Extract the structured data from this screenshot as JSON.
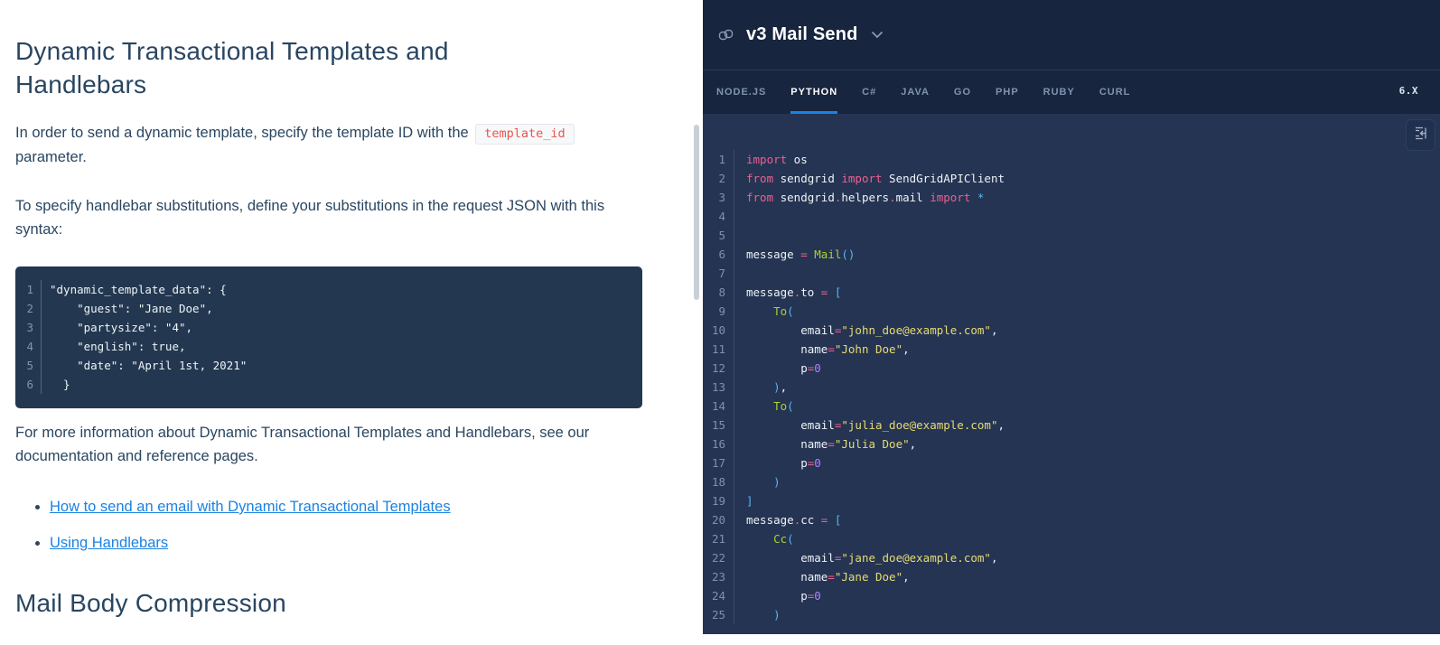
{
  "doc": {
    "title": "Dynamic Transactional Templates and Handlebars",
    "p1_before": "In order to send a dynamic template, specify the template ID with the ",
    "inline_code": "template_id",
    "p1_after": " parameter.",
    "p2": "To specify handlebar substitutions, define your substitutions in the request JSON with this syntax:",
    "code_block": {
      "start": 1,
      "lines": [
        "\"dynamic_template_data\": {",
        "    \"guest\": \"Jane Doe\",",
        "    \"partysize\": \"4\",",
        "    \"english\": true,",
        "    \"date\": \"April 1st, 2021\"",
        "  }"
      ]
    },
    "p3": "For more information about Dynamic Transactional Templates and Handlebars, see our documentation and reference pages.",
    "links": [
      "How to send an email with Dynamic Transactional Templates",
      "Using Handlebars"
    ],
    "section2_title": "Mail Body Compression"
  },
  "right_panel": {
    "title": "v3 Mail Send",
    "tabs": [
      "NODE.JS",
      "PYTHON",
      "C#",
      "JAVA",
      "GO",
      "PHP",
      "RUBY",
      "CURL"
    ],
    "active_tab": 1,
    "version": "6.X",
    "code": {
      "start": 1,
      "lines": [
        [
          [
            "k",
            "import"
          ],
          [
            "t",
            " os"
          ]
        ],
        [
          [
            "k",
            "from"
          ],
          [
            "t",
            " sendgrid "
          ],
          [
            "k",
            "import"
          ],
          [
            "t",
            " SendGridAPIClient"
          ]
        ],
        [
          [
            "k",
            "from"
          ],
          [
            "t",
            " sendgrid"
          ],
          [
            "k",
            "."
          ],
          [
            "t",
            "helpers"
          ],
          [
            "k",
            "."
          ],
          [
            "t",
            "mail "
          ],
          [
            "k",
            "import"
          ],
          [
            "b",
            " *"
          ]
        ],
        [],
        [],
        [
          [
            "t",
            "message "
          ],
          [
            "k",
            "="
          ],
          [
            "t",
            " "
          ],
          [
            "f",
            "Mail"
          ],
          [
            "b",
            "()"
          ]
        ],
        [],
        [
          [
            "t",
            "message"
          ],
          [
            "k",
            "."
          ],
          [
            "t",
            "to "
          ],
          [
            "k",
            "="
          ],
          [
            "t",
            " "
          ],
          [
            "b",
            "["
          ]
        ],
        [
          [
            "t",
            "    "
          ],
          [
            "f",
            "To"
          ],
          [
            "b",
            "("
          ]
        ],
        [
          [
            "t",
            "        email"
          ],
          [
            "k",
            "="
          ],
          [
            "s",
            "\"john_doe@example.com\""
          ],
          [
            "t",
            ","
          ]
        ],
        [
          [
            "t",
            "        name"
          ],
          [
            "k",
            "="
          ],
          [
            "s",
            "\"John Doe\""
          ],
          [
            "t",
            ","
          ]
        ],
        [
          [
            "t",
            "        p"
          ],
          [
            "k",
            "="
          ],
          [
            "n",
            "0"
          ]
        ],
        [
          [
            "t",
            "    "
          ],
          [
            "b",
            ")"
          ],
          [
            "t",
            ","
          ]
        ],
        [
          [
            "t",
            "    "
          ],
          [
            "f",
            "To"
          ],
          [
            "b",
            "("
          ]
        ],
        [
          [
            "t",
            "        email"
          ],
          [
            "k",
            "="
          ],
          [
            "s",
            "\"julia_doe@example.com\""
          ],
          [
            "t",
            ","
          ]
        ],
        [
          [
            "t",
            "        name"
          ],
          [
            "k",
            "="
          ],
          [
            "s",
            "\"Julia Doe\""
          ],
          [
            "t",
            ","
          ]
        ],
        [
          [
            "t",
            "        p"
          ],
          [
            "k",
            "="
          ],
          [
            "n",
            "0"
          ]
        ],
        [
          [
            "t",
            "    "
          ],
          [
            "b",
            ")"
          ]
        ],
        [
          [
            "b",
            "]"
          ]
        ],
        [
          [
            "t",
            "message"
          ],
          [
            "k",
            "."
          ],
          [
            "t",
            "cc "
          ],
          [
            "k",
            "="
          ],
          [
            "t",
            " "
          ],
          [
            "b",
            "["
          ]
        ],
        [
          [
            "t",
            "    "
          ],
          [
            "f",
            "Cc"
          ],
          [
            "b",
            "("
          ]
        ],
        [
          [
            "t",
            "        email"
          ],
          [
            "k",
            "="
          ],
          [
            "s",
            "\"jane_doe@example.com\""
          ],
          [
            "t",
            ","
          ]
        ],
        [
          [
            "t",
            "        name"
          ],
          [
            "k",
            "="
          ],
          [
            "s",
            "\"Jane Doe\""
          ],
          [
            "t",
            ","
          ]
        ],
        [
          [
            "t",
            "        p"
          ],
          [
            "k",
            "="
          ],
          [
            "n",
            "0"
          ]
        ],
        [
          [
            "t",
            "    "
          ],
          [
            "b",
            ")"
          ]
        ]
      ]
    }
  },
  "icons": {
    "header_icon": "link-icon",
    "dropdown_icon": "chevron-down-icon",
    "code_tool_icon": "expand-code-icon"
  },
  "colors": {
    "accent_blue": "#1a82e2",
    "doc_text": "#294661",
    "inline_code_red": "#e8554e",
    "panel_bg": "#253452",
    "header_bg": "#17253e",
    "keyword_pink": "#ec6091",
    "string_yellow": "#e6db74",
    "function_green": "#abd036",
    "bracket_blue": "#58b6f2",
    "number_purple": "#ae81ff"
  }
}
